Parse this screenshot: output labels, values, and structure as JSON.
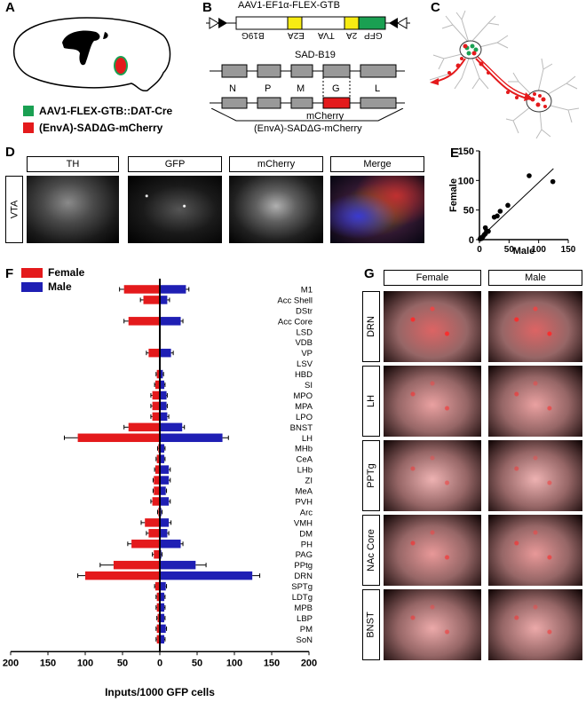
{
  "panels": {
    "A": {
      "letter": "A",
      "legend": [
        {
          "label": "AAV1-FLEX-GTB::DAT-Cre",
          "color": "#1aa052"
        },
        {
          "label": "(EnvA)-SADΔG-mCherry",
          "color": "#e41a1c"
        }
      ]
    },
    "B": {
      "letter": "B",
      "aav_title": "AAV1-EF1α-FLEX-GTB",
      "aav_segments": [
        "B19G",
        "E2A",
        "TVA",
        "2A",
        "GFP"
      ],
      "sad_title": "SAD-B19",
      "genes": [
        "N",
        "P",
        "M",
        "G",
        "L"
      ],
      "mcherry_label": "mCherry",
      "virus_label": "(EnvA)-SADΔG-mCherry"
    },
    "C": {
      "letter": "C"
    },
    "D": {
      "letter": "D",
      "row_label": "VTA",
      "columns": [
        "TH",
        "GFP",
        "mCherry",
        "Merge"
      ]
    },
    "E": {
      "letter": "E",
      "xlabel": "Male",
      "ylabel": "Female",
      "yticks": [
        "0",
        "50",
        "100",
        "150"
      ],
      "xticks": [
        "0",
        "50",
        "100",
        "150"
      ]
    },
    "F": {
      "letter": "F",
      "xlabel": "Inputs/1000 GFP cells",
      "xticks": [
        "200",
        "150",
        "100",
        "50",
        "0",
        "50",
        "100",
        "150",
        "200"
      ]
    },
    "G": {
      "letter": "G",
      "columns": [
        "Female",
        "Male"
      ],
      "rows": [
        "DRN",
        "LH",
        "PPTg",
        "NAc Core",
        "BNST"
      ]
    }
  },
  "chart_data": [
    {
      "id": "F",
      "type": "bar",
      "orientation": "horizontal",
      "xlabel": "Inputs/1000 GFP cells",
      "xlim": [
        -200,
        200
      ],
      "legend": "top-left",
      "categories": [
        "M1",
        "Acc Shell",
        "DStr",
        "Acc Core",
        "LSD",
        "VDB",
        "VP",
        "LSV",
        "HBD",
        "SI",
        "MPO",
        "MPA",
        "LPO",
        "BNST",
        "LH",
        "MHb",
        "CeA",
        "LHb",
        "ZI",
        "MeA",
        "PVH",
        "Arc",
        "VMH",
        "DM",
        "PH",
        "PAG",
        "PPtg",
        "DRN",
        "SPTg",
        "LDTg",
        "MPB",
        "LBP",
        "PM",
        "SoN"
      ],
      "series": [
        {
          "name": "Female",
          "color": "#e41a1c",
          "values": [
            48,
            22,
            1,
            42,
            1,
            1,
            15,
            1,
            4,
            6,
            10,
            10,
            10,
            42,
            110,
            2,
            4,
            6,
            8,
            8,
            10,
            2,
            20,
            15,
            38,
            8,
            62,
            100,
            6,
            4,
            4,
            3,
            4,
            4
          ],
          "errors": [
            6,
            4,
            0,
            6,
            0,
            0,
            3,
            0,
            1,
            1,
            2,
            2,
            2,
            6,
            18,
            1,
            1,
            1,
            1,
            1,
            2,
            1,
            5,
            3,
            5,
            2,
            18,
            10,
            1,
            1,
            1,
            1,
            1,
            1
          ]
        },
        {
          "name": "Male",
          "color": "#1f1fb4",
          "values": [
            35,
            10,
            1,
            28,
            1,
            1,
            15,
            1,
            4,
            6,
            9,
            9,
            10,
            30,
            84,
            6,
            6,
            12,
            12,
            8,
            12,
            2,
            12,
            10,
            28,
            2,
            48,
            124,
            8,
            6,
            6,
            6,
            8,
            6
          ],
          "errors": [
            4,
            3,
            0,
            3,
            0,
            0,
            3,
            0,
            1,
            1,
            1,
            1,
            2,
            3,
            8,
            1,
            1,
            2,
            2,
            1,
            2,
            1,
            3,
            2,
            3,
            1,
            14,
            10,
            1,
            1,
            1,
            1,
            1,
            1
          ]
        }
      ]
    },
    {
      "id": "E",
      "type": "scatter",
      "xlabel": "Male",
      "ylabel": "Female",
      "xlim": [
        0,
        150
      ],
      "ylim": [
        0,
        150
      ],
      "points": [
        [
          1,
          1
        ],
        [
          2,
          3
        ],
        [
          4,
          2
        ],
        [
          6,
          5
        ],
        [
          8,
          8
        ],
        [
          10,
          10
        ],
        [
          12,
          15
        ],
        [
          10,
          20
        ],
        [
          15,
          14
        ],
        [
          25,
          38
        ],
        [
          30,
          40
        ],
        [
          35,
          48
        ],
        [
          48,
          58
        ],
        [
          84,
          108
        ],
        [
          124,
          98
        ]
      ],
      "fit_line": [
        [
          0,
          2
        ],
        [
          125,
          120
        ]
      ]
    }
  ]
}
